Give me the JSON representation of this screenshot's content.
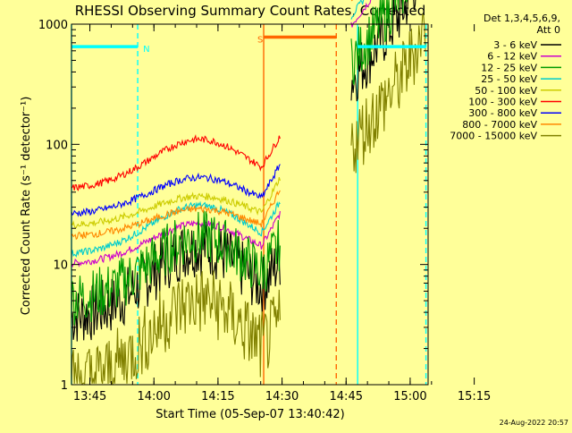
{
  "chart_data": {
    "type": "line",
    "title": "RHESSI Observing Summary Count Rates, Corrected",
    "xlabel": "Start Time (05-Sep-07 13:40:42)",
    "ylabel": "Corrected Count Rate (s⁻¹ detector⁻¹)",
    "x_unit": "minutes after 13:40:42",
    "xlim": [
      0,
      83.5
    ],
    "ylim": [
      1,
      1000
    ],
    "yscale": "log",
    "x_ticks": [
      {
        "v": 4.3,
        "label": "13:45"
      },
      {
        "v": 19.3,
        "label": "14:00"
      },
      {
        "v": 34.3,
        "label": "14:15"
      },
      {
        "v": 49.3,
        "label": "14:30"
      },
      {
        "v": 64.3,
        "label": "14:45"
      },
      {
        "v": 79.3,
        "label": "15:00"
      },
      {
        "v": 94.3,
        "label": "15:15"
      }
    ],
    "y_ticks": [
      {
        "v": 1,
        "label": "1"
      },
      {
        "v": 10,
        "label": "10"
      },
      {
        "v": 100,
        "label": "100"
      },
      {
        "v": 1000,
        "label": "1000"
      }
    ],
    "legend": {
      "position": "right",
      "header": [
        "Det 1,3,4,5,6,9,",
        "Att 0"
      ]
    },
    "series": [
      {
        "name": "3 - 6 keV",
        "color": "#000000",
        "level": 3.5,
        "peak": 14,
        "noise": 0.1
      },
      {
        "name": "6 - 12 keV",
        "color": "#cc00cc",
        "level": 10,
        "peak": 22,
        "noise": 0.03
      },
      {
        "name": "12 - 25 keV",
        "color": "#009900",
        "level": 5,
        "peak": 17,
        "noise": 0.09
      },
      {
        "name": "25 - 50 keV",
        "color": "#00cccc",
        "level": 12,
        "peak": 31,
        "noise": 0.03
      },
      {
        "name": "50 - 100 keV",
        "color": "#cccc00",
        "level": 21,
        "peak": 37,
        "noise": 0.03
      },
      {
        "name": "100 - 300 keV",
        "color": "#ff0000",
        "level": 42,
        "peak": 110,
        "noise": 0.03
      },
      {
        "name": "300 - 800 keV",
        "color": "#0000ff",
        "level": 26,
        "peak": 53,
        "noise": 0.03
      },
      {
        "name": "800 - 7000 keV",
        "color": "#ff8800",
        "level": 17,
        "peak": 29,
        "noise": 0.03
      },
      {
        "name": "7000 - 15000 keV",
        "color": "#808000",
        "level": 1,
        "peak": 5,
        "noise": 0.12
      }
    ],
    "segments": [
      [
        0,
        49
      ],
      [
        65.5,
        83
      ]
    ],
    "flags": [
      {
        "label": "N",
        "start": 0,
        "end": 15.5,
        "level": 650,
        "color": "#00ffff"
      },
      {
        "label": "S",
        "start": 45,
        "end": 62,
        "level": 780,
        "color": "#ff6600"
      },
      {
        "label": "",
        "start": 67,
        "end": 83,
        "level": 650,
        "color": "#00ffff"
      }
    ],
    "markers": [
      {
        "x": 0,
        "color": "#00ffff",
        "style": "solid"
      },
      {
        "x": 15.5,
        "color": "#00ffff",
        "style": "dashed"
      },
      {
        "x": 45,
        "color": "#ff6600",
        "style": "solid"
      },
      {
        "x": 62,
        "color": "#ff6600",
        "style": "dashed"
      },
      {
        "x": 67,
        "color": "#00ffff",
        "style": "solid"
      },
      {
        "x": 83,
        "color": "#00ffff",
        "style": "dashed"
      }
    ],
    "timestamp": "24-Aug-2022 20:57"
  }
}
